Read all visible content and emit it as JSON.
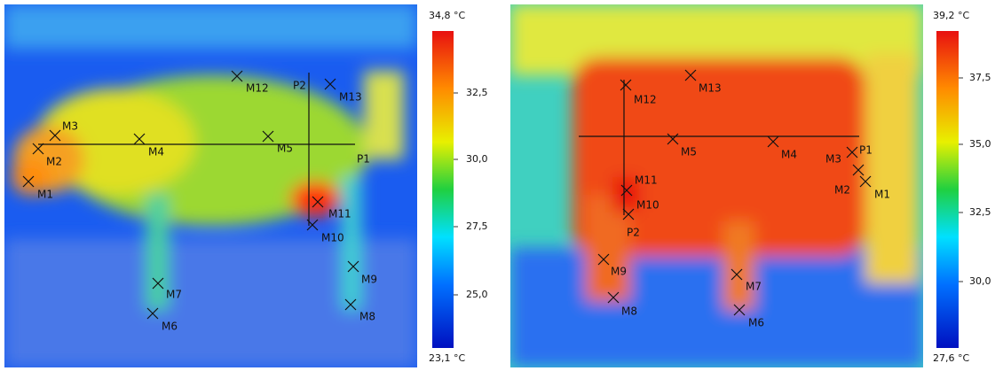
{
  "panels": [
    {
      "scale": {
        "max": "34,8 °C",
        "ticks": [
          "32,5",
          "30,0",
          "27,5",
          "25,0"
        ],
        "min": "23,1 °C"
      },
      "lines": [
        "P1",
        "P2"
      ],
      "markers": [
        "M1",
        "M2",
        "M3",
        "M4",
        "M5",
        "M6",
        "M7",
        "M8",
        "M9",
        "M10",
        "M11",
        "M12",
        "M13"
      ]
    },
    {
      "scale": {
        "max": "39,2 °C",
        "ticks": [
          "37,5",
          "35,0",
          "32,5",
          "30,0"
        ],
        "min": "27,6 °C"
      },
      "lines": [
        "P1",
        "P2"
      ],
      "markers": [
        "M1",
        "M2",
        "M3",
        "M4",
        "M5",
        "M6",
        "M7",
        "M8",
        "M9",
        "M10",
        "M11",
        "M12",
        "M13"
      ]
    }
  ]
}
